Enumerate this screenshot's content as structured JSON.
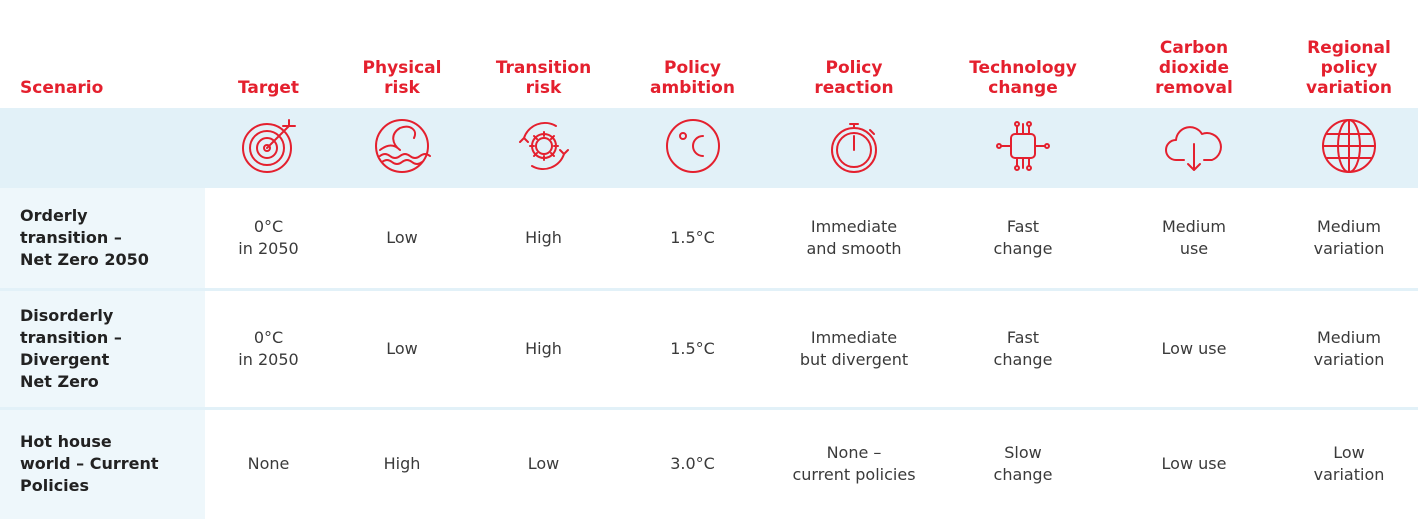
{
  "table": {
    "headers": [
      "Scenario",
      "Target",
      "Physical\nrisk",
      "Transition\nrisk",
      "Policy\nambition",
      "Policy\nreaction",
      "Technology\nchange",
      "Carbon\ndioxide\nremoval",
      "Regional\npolicy\nvariation"
    ],
    "rows": [
      [
        "Orderly\ntransition –\nNet Zero 2050",
        "0°C\nin 2050",
        "Low",
        "High",
        "1.5°C",
        "Immediate\nand smooth",
        "Fast\nchange",
        "Medium\nuse",
        "Medium\nvariation"
      ],
      [
        "Disorderly\ntransition –\nDivergent\nNet Zero",
        "0°C\nin 2050",
        "Low",
        "High",
        "1.5°C",
        "Immediate\nbut divergent",
        "Fast\nchange",
        "Low use",
        "Medium\nvariation"
      ],
      [
        "Hot house\nworld – Current\nPolicies",
        "None",
        "High",
        "Low",
        "3.0°C",
        "None –\ncurrent policies",
        "Slow\nchange",
        "Low use",
        "Low\nvariation"
      ]
    ]
  }
}
